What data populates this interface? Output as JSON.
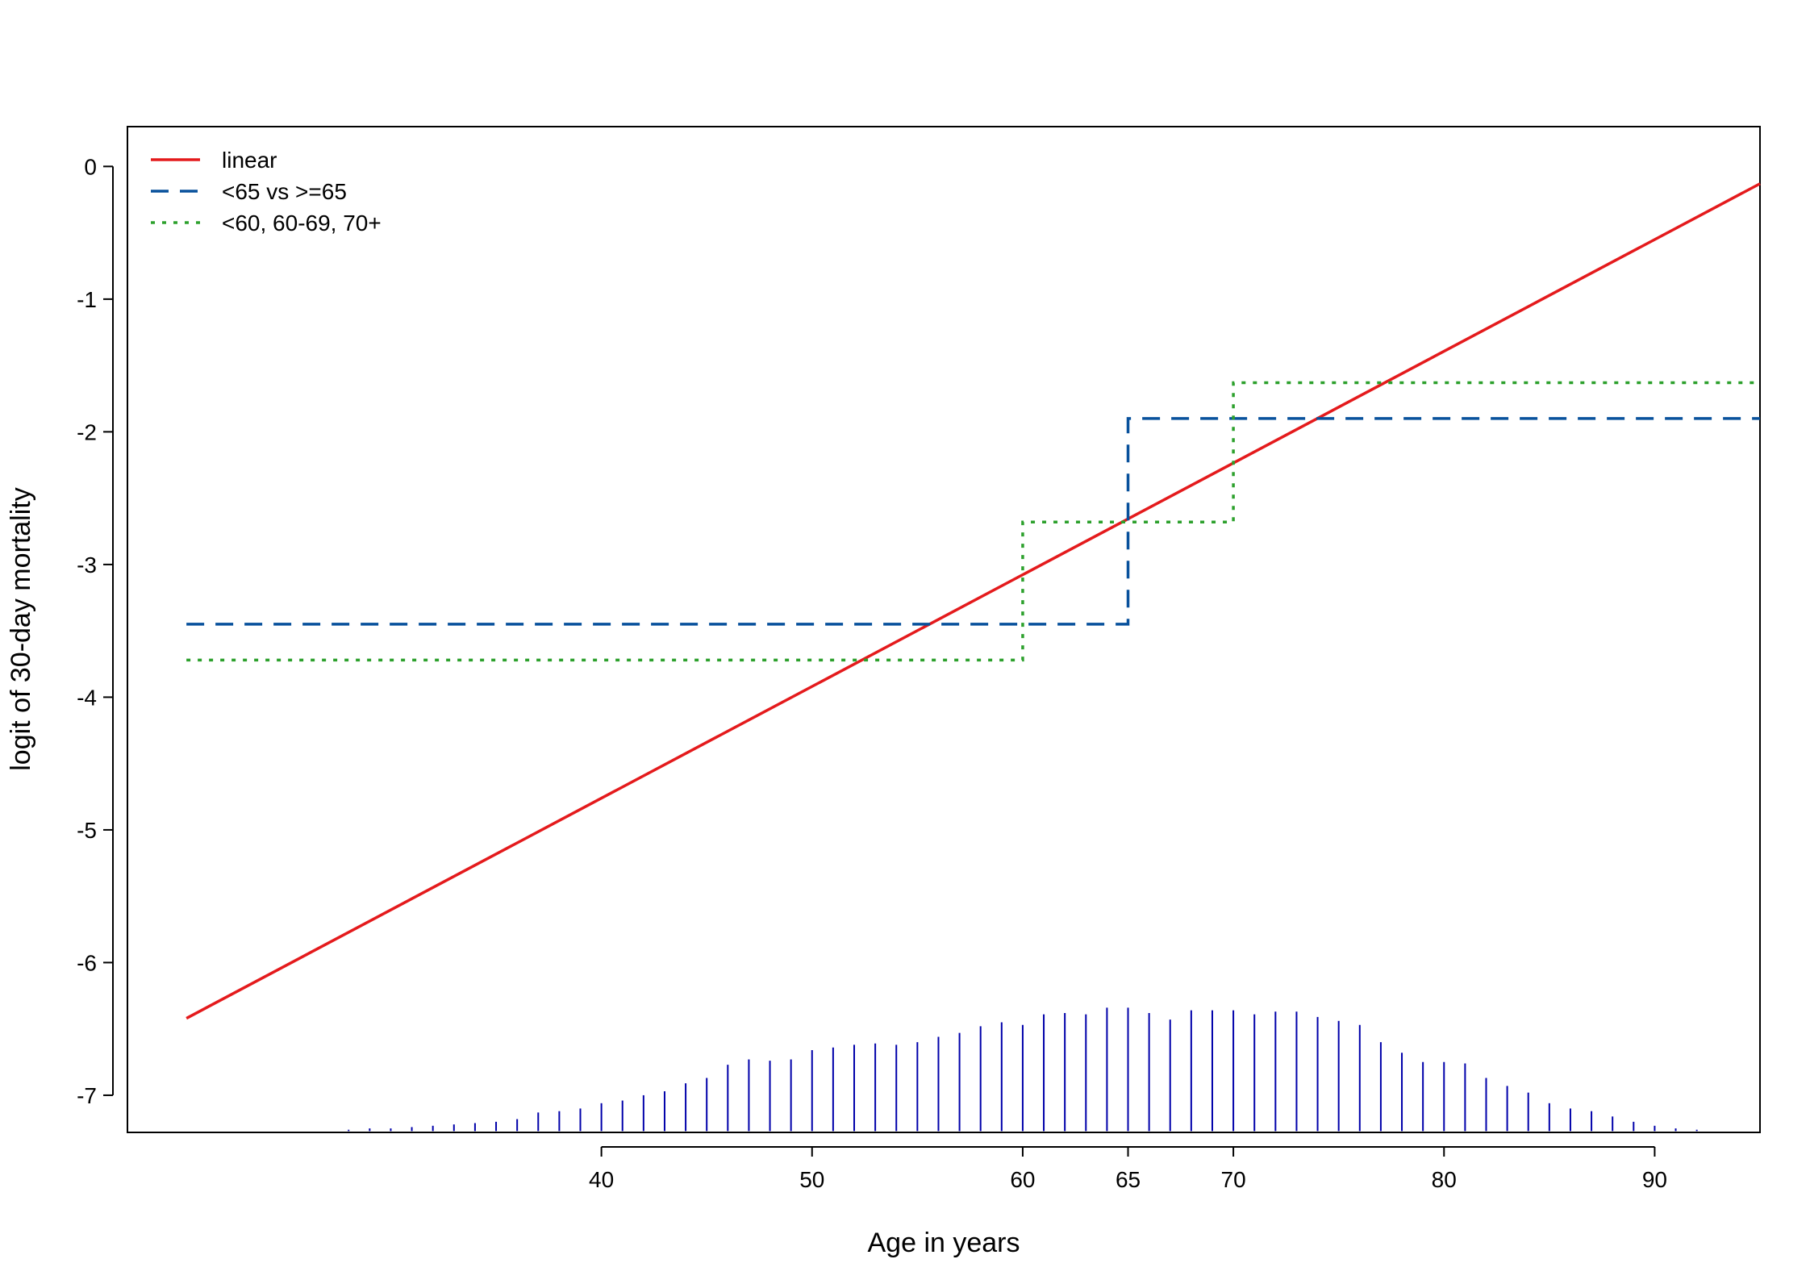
{
  "chart_data": {
    "type": "line",
    "title": "",
    "xlabel": "Age in years",
    "ylabel": "logit of 30-day mortality",
    "xlim": [
      17.5,
      95
    ],
    "ylim": [
      -7.28,
      0.3
    ],
    "x_ticks": [
      40,
      50,
      60,
      65,
      70,
      80,
      90
    ],
    "y_ticks": [
      0,
      -1,
      -2,
      -3,
      -4,
      -5,
      -6,
      -7
    ],
    "grid": false,
    "legend_position": "top-left",
    "series": [
      {
        "name": "linear",
        "style": "solid",
        "color": "#e41a1c",
        "x": [
          20.3,
          95
        ],
        "y": [
          -6.42,
          -0.13
        ]
      },
      {
        "name": "<65 vs >=65",
        "style": "dashed",
        "color": "#08519c",
        "x": [
          20.3,
          65,
          65,
          95
        ],
        "y": [
          -3.45,
          -3.45,
          -1.9,
          -1.9
        ]
      },
      {
        "name": "<60, 60-69, 70+",
        "style": "dotted",
        "color": "#2ca02c",
        "x": [
          20.3,
          60,
          60,
          70,
          70,
          95
        ],
        "y": [
          -3.72,
          -3.72,
          -2.68,
          -2.68,
          -1.63,
          -1.63
        ]
      }
    ],
    "rug": {
      "description": "age distribution spikes",
      "color": "#0000aa",
      "baseline": -7.27,
      "x": [
        21,
        22,
        23,
        24,
        25,
        26,
        27,
        28,
        29,
        30,
        31,
        32,
        33,
        34,
        35,
        36,
        37,
        38,
        39,
        40,
        41,
        42,
        43,
        44,
        45,
        46,
        47,
        48,
        49,
        50,
        51,
        52,
        53,
        54,
        55,
        56,
        57,
        58,
        59,
        60,
        61,
        62,
        63,
        64,
        65,
        66,
        67,
        68,
        69,
        70,
        71,
        72,
        73,
        74,
        75,
        76,
        77,
        78,
        79,
        80,
        81,
        82,
        83,
        84,
        85,
        86,
        87,
        88,
        89,
        90,
        91,
        92
      ],
      "y": [
        -7.27,
        -7.27,
        -7.27,
        -7.27,
        -7.27,
        -7.27,
        -7.27,
        -7.26,
        -7.25,
        -7.25,
        -7.24,
        -7.23,
        -7.22,
        -7.21,
        -7.2,
        -7.18,
        -7.13,
        -7.12,
        -7.1,
        -7.06,
        -7.04,
        -7.0,
        -6.97,
        -6.91,
        -6.87,
        -6.77,
        -6.73,
        -6.74,
        -6.73,
        -6.66,
        -6.64,
        -6.62,
        -6.61,
        -6.62,
        -6.6,
        -6.56,
        -6.53,
        -6.48,
        -6.45,
        -6.47,
        -6.39,
        -6.38,
        -6.39,
        -6.34,
        -6.34,
        -6.38,
        -6.43,
        -6.36,
        -6.36,
        -6.36,
        -6.39,
        -6.37,
        -6.37,
        -6.41,
        -6.44,
        -6.47,
        -6.6,
        -6.68,
        -6.75,
        -6.75,
        -6.76,
        -6.87,
        -6.93,
        -6.98,
        -7.06,
        -7.1,
        -7.12,
        -7.16,
        -7.2,
        -7.23,
        -7.25,
        -7.26
      ]
    }
  }
}
